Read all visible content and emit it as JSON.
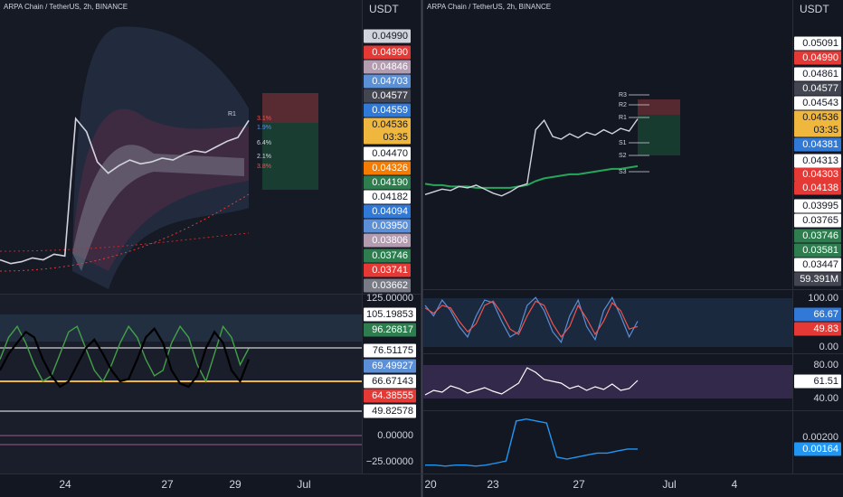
{
  "left": {
    "title": "ARPA Chain / TetherUS, 2h, BINANCE",
    "unit": "USDT",
    "ylim": [
      0.0362,
      0.0518
    ],
    "price": {
      "color": "#d1d4dc",
      "values": [
        0.038,
        0.0378,
        0.0379,
        0.0381,
        0.038,
        0.0383,
        0.0382,
        0.0455,
        0.0448,
        0.0432,
        0.0426,
        0.043,
        0.0433,
        0.0431,
        0.0432,
        0.0434,
        0.0433,
        0.0436,
        0.0438,
        0.0437,
        0.044,
        0.0443,
        0.0445,
        0.0454
      ]
    },
    "price_labels": [
      {
        "text": "0.04990",
        "bg": "#d1d4dc",
        "fg": "#131722"
      },
      {
        "text": "0.04990",
        "bg": "#e53935",
        "fg": "#ffffff"
      },
      {
        "text": "0.04846",
        "bg": "#b39bb0",
        "fg": "#ffffff"
      },
      {
        "text": "0.04703",
        "bg": "#5b8fd6",
        "fg": "#ffffff"
      },
      {
        "text": "0.04577",
        "bg": "#434651",
        "fg": "#ffffff"
      },
      {
        "text": "0.04559",
        "bg": "#3179d6",
        "fg": "#ffffff"
      },
      {
        "text": "0.04536",
        "bg": "#f0b73f",
        "fg": "#131722"
      },
      {
        "text": "03:35",
        "bg": "#f0b73f",
        "fg": "#131722"
      },
      {
        "text": "0.04470",
        "bg": "#ffffff",
        "fg": "#131722"
      },
      {
        "text": "0.04326",
        "bg": "#f57c00",
        "fg": "#ffffff"
      },
      {
        "text": "0.04190",
        "bg": "#2e7d4f",
        "fg": "#ffffff"
      },
      {
        "text": "0.04182",
        "bg": "#ffffff",
        "fg": "#131722"
      },
      {
        "text": "0.04094",
        "bg": "#3179d6",
        "fg": "#ffffff"
      },
      {
        "text": "0.03950",
        "bg": "#5b8fd6",
        "fg": "#ffffff"
      },
      {
        "text": "0.03806",
        "bg": "#b39bb0",
        "fg": "#ffffff"
      },
      {
        "text": "0.03746",
        "bg": "#2e7d4f",
        "fg": "#ffffff"
      },
      {
        "text": "0.03741",
        "bg": "#e53935",
        "fg": "#ffffff"
      },
      {
        "text": "0.03662",
        "bg": "#787b86",
        "fg": "#ffffff"
      }
    ],
    "pivots": [
      "R1"
    ],
    "percents": [
      {
        "text": "3.1%",
        "color": "#ef5350"
      },
      {
        "text": "1.9%",
        "color": "#5b8fd6"
      },
      {
        "text": "6.4%",
        "color": "#d1d4dc"
      },
      {
        "text": "2.1%",
        "color": "#d1d4dc"
      },
      {
        "text": "3.8%",
        "color": "#ef5350"
      }
    ],
    "osc": {
      "ylim": [
        -34,
        129
      ],
      "series": [
        {
          "color": "#000000",
          "values": [
            60,
            75,
            85,
            95,
            90,
            70,
            55,
            45,
            50,
            65,
            80,
            88,
            75,
            60,
            50,
            52,
            70,
            90,
            98,
            85,
            60,
            48,
            45,
            55,
            80,
            95,
            85,
            60,
            50,
            70
          ]
        },
        {
          "color": "#43a047",
          "values": [
            70,
            90,
            100,
            85,
            65,
            50,
            55,
            75,
            95,
            100,
            80,
            60,
            50,
            65,
            85,
            100,
            90,
            70,
            55,
            60,
            85,
            100,
            90,
            65,
            50,
            75,
            100,
            90,
            65,
            80
          ]
        }
      ],
      "labels": [
        {
          "text": "125.00000",
          "bg": "none",
          "fg": "#d1d4dc"
        },
        {
          "text": "105.19853",
          "bg": "#ffffff",
          "fg": "#131722"
        },
        {
          "text": "96.26817",
          "bg": "#2e7d4f",
          "fg": "#ffffff"
        },
        {
          "text": "76.51175",
          "bg": "#ffffff",
          "fg": "#131722"
        },
        {
          "text": "69.49927",
          "bg": "#5b8fd6",
          "fg": "#ffffff"
        },
        {
          "text": "66.67143",
          "bg": "#ffffff",
          "fg": "#131722"
        },
        {
          "text": "64.38555",
          "bg": "#e53935",
          "fg": "#ffffff"
        },
        {
          "text": "49.82578",
          "bg": "#ffffff",
          "fg": "#131722"
        },
        {
          "text": "0.00000",
          "bg": "none",
          "fg": "#d1d4dc"
        },
        {
          "text": "−25.00000",
          "bg": "none",
          "fg": "#d1d4dc"
        }
      ]
    },
    "x_labels": [
      "24",
      "27",
      "29",
      "Jul"
    ]
  },
  "right": {
    "title": "ARPA Chain / TetherUS, 2h, BINANCE",
    "unit": "USDT",
    "ylim": [
      0.0327,
      0.0541
    ],
    "price": {
      "color": "#d1d4dc",
      "values": [
        0.0397,
        0.0399,
        0.0401,
        0.04,
        0.0403,
        0.0402,
        0.0404,
        0.0401,
        0.0398,
        0.0396,
        0.0399,
        0.0403,
        0.0405,
        0.0445,
        0.0452,
        0.044,
        0.0438,
        0.0442,
        0.0439,
        0.0443,
        0.0441,
        0.0445,
        0.0442,
        0.0446,
        0.0444,
        0.0453
      ]
    },
    "ema": {
      "color": "#26a65b",
      "values": [
        0.0405,
        0.0404,
        0.0404,
        0.0403,
        0.0403,
        0.0403,
        0.0402,
        0.0402,
        0.0402,
        0.0402,
        0.0402,
        0.0403,
        0.0404,
        0.0407,
        0.0409,
        0.041,
        0.0411,
        0.0412,
        0.0412,
        0.0413,
        0.0414,
        0.0415,
        0.0416,
        0.0416,
        0.0417,
        0.0418
      ]
    },
    "price_labels": [
      {
        "text": "0.05091",
        "bg": "#ffffff",
        "fg": "#131722"
      },
      {
        "text": "0.04990",
        "bg": "#e53935",
        "fg": "#ffffff"
      },
      {
        "text": "0.04861",
        "bg": "#ffffff",
        "fg": "#131722"
      },
      {
        "text": "0.04577",
        "bg": "#434651",
        "fg": "#ffffff"
      },
      {
        "text": "0.04543",
        "bg": "#ffffff",
        "fg": "#131722"
      },
      {
        "text": "0.04536",
        "bg": "#f0b73f",
        "fg": "#131722"
      },
      {
        "text": "03:35",
        "bg": "#f0b73f",
        "fg": "#131722"
      },
      {
        "text": "0.04381",
        "bg": "#3179d6",
        "fg": "#ffffff"
      },
      {
        "text": "0.04313",
        "bg": "#ffffff",
        "fg": "#131722"
      },
      {
        "text": "0.04303",
        "bg": "#e53935",
        "fg": "#ffffff"
      },
      {
        "text": "0.04138",
        "bg": "#e53935",
        "fg": "#ffffff"
      },
      {
        "text": "0.03995",
        "bg": "#ffffff",
        "fg": "#131722"
      },
      {
        "text": "0.03765",
        "bg": "#ffffff",
        "fg": "#131722"
      },
      {
        "text": "0.03746",
        "bg": "#2e7d4f",
        "fg": "#ffffff"
      },
      {
        "text": "0.03581",
        "bg": "#2e7d4f",
        "fg": "#ffffff"
      },
      {
        "text": "0.03447",
        "bg": "#ffffff",
        "fg": "#131722"
      },
      {
        "text": "59.391M",
        "bg": "#434651",
        "fg": "#ffffff"
      }
    ],
    "pivots": [
      "R3",
      "R2",
      "R1",
      "S1",
      "S2",
      "S3"
    ],
    "stoch": {
      "ylim": [
        -11,
        109
      ],
      "series": [
        {
          "color": "#5b8fd6",
          "values": [
            80,
            60,
            90,
            70,
            40,
            20,
            60,
            90,
            85,
            50,
            20,
            30,
            80,
            95,
            70,
            30,
            10,
            60,
            90,
            40,
            15,
            70,
            95,
            60,
            20,
            50
          ]
        },
        {
          "color": "#ef5350",
          "values": [
            75,
            65,
            80,
            75,
            50,
            30,
            45,
            80,
            88,
            65,
            35,
            25,
            60,
            88,
            80,
            45,
            20,
            40,
            80,
            55,
            25,
            50,
            85,
            70,
            35,
            40
          ]
        }
      ],
      "labels": [
        {
          "text": "100.00",
          "bg": "none",
          "fg": "#d1d4dc"
        },
        {
          "text": "66.67",
          "bg": "#3179d6",
          "fg": "#ffffff"
        },
        {
          "text": "49.83",
          "bg": "#e53935",
          "fg": "#ffffff"
        },
        {
          "text": "0.00",
          "bg": "none",
          "fg": "#d1d4dc"
        }
      ]
    },
    "rsi": {
      "ylim": [
        28,
        90
      ],
      "color": "#ffffff",
      "values": [
        45,
        50,
        48,
        55,
        52,
        47,
        50,
        53,
        49,
        46,
        52,
        58,
        75,
        70,
        62,
        60,
        58,
        52,
        55,
        50,
        54,
        51,
        57,
        50,
        52,
        61
      ],
      "labels": [
        {
          "text": "80.00",
          "bg": "none",
          "fg": "#d1d4dc"
        },
        {
          "text": "61.51",
          "bg": "#ffffff",
          "fg": "#131722"
        },
        {
          "text": "40.00",
          "bg": "none",
          "fg": "#d1d4dc"
        }
      ]
    },
    "bottom": {
      "ylim": [
        0.00047,
        0.00349
      ],
      "color": "#2196f3",
      "values": [
        0.0008,
        0.0008,
        0.00075,
        0.0008,
        0.0008,
        0.00075,
        0.0008,
        0.0009,
        0.001,
        0.003,
        0.0031,
        0.003,
        0.0029,
        0.0012,
        0.0011,
        0.0012,
        0.0013,
        0.0014,
        0.0014,
        0.0015,
        0.0016,
        0.0016
      ],
      "labels": [
        {
          "text": "0.00200",
          "bg": "none",
          "fg": "#d1d4dc"
        },
        {
          "text": "0.00164",
          "bg": "#2196f3",
          "fg": "#ffffff"
        }
      ]
    },
    "x_labels": [
      "20",
      "23",
      "27",
      "Jul",
      "4"
    ]
  }
}
